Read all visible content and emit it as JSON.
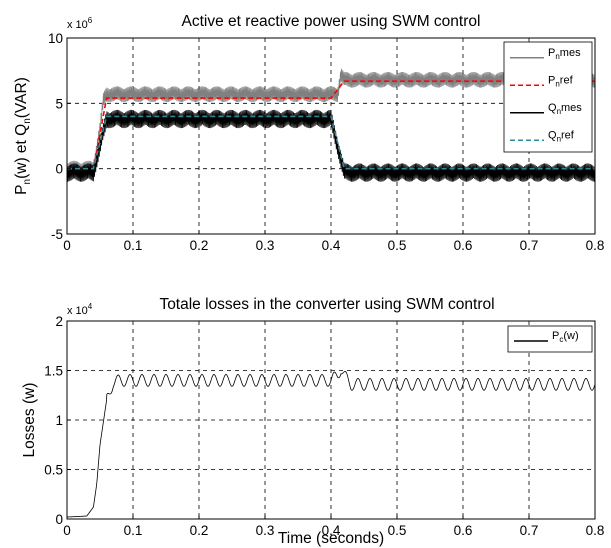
{
  "chart_data": [
    {
      "type": "line",
      "title": "Active et reactive power using SWM control",
      "xlabel": "",
      "ylabel": "P_n(w) et Q_n(VAR)",
      "y_multiplier": "x 10^6",
      "xlim": [
        0,
        0.8
      ],
      "ylim": [
        -5,
        10
      ],
      "xticks": [
        "0",
        "0.1",
        "0.2",
        "0.3",
        "0.4",
        "0.5",
        "0.6",
        "0.7",
        "0.8"
      ],
      "yticks": [
        "-5",
        "0",
        "5",
        "10"
      ],
      "grid": true,
      "legend_position": "top-right",
      "series": [
        {
          "name": "P_n mes",
          "color": "#808080",
          "style": "solid",
          "oscillation": 0.6,
          "x": [
            0,
            0.04,
            0.05,
            0.055,
            0.06,
            0.41,
            0.415,
            0.42,
            0.8
          ],
          "values": [
            0,
            0,
            3.0,
            5.2,
            5.7,
            5.7,
            7.2,
            6.8,
            6.8
          ]
        },
        {
          "name": "P_n ref",
          "color": "#ff0000",
          "style": "dashed",
          "oscillation": 0,
          "x": [
            0,
            0.04,
            0.06,
            0.4,
            0.42,
            0.8
          ],
          "values": [
            0,
            0,
            5.4,
            5.4,
            6.7,
            6.7
          ]
        },
        {
          "name": "Q_n mes",
          "color": "#000000",
          "style": "solid",
          "oscillation": 0.7,
          "x": [
            0,
            0.04,
            0.06,
            0.4,
            0.42,
            0.8
          ],
          "values": [
            -0.3,
            -0.3,
            3.8,
            3.8,
            -0.3,
            -0.3
          ]
        },
        {
          "name": "Q_n ref",
          "color": "#2e8b9a",
          "style": "dashed",
          "oscillation": 0,
          "x": [
            0,
            0.04,
            0.06,
            0.4,
            0.42,
            0.8
          ],
          "values": [
            0,
            0,
            4.0,
            4.0,
            0,
            0
          ]
        }
      ]
    },
    {
      "type": "line",
      "title": "Totale losses in the converter using SWM control",
      "xlabel": "Time (seconds)",
      "ylabel": "Losses (w)",
      "y_multiplier": "x 10^4",
      "xlim": [
        0,
        0.8
      ],
      "ylim": [
        0,
        2
      ],
      "xticks": [
        "0",
        "0.1",
        "0.2",
        "0.3",
        "0.4",
        "0.5",
        "0.6",
        "0.7",
        "0.8"
      ],
      "yticks": [
        "0",
        "0.5",
        "1",
        "1.5",
        "2"
      ],
      "grid": true,
      "legend_position": "top-right",
      "series": [
        {
          "name": "P_c(w)",
          "color": "#000000",
          "style": "solid",
          "oscillation": 0.06,
          "x": [
            0,
            0.03,
            0.04,
            0.045,
            0.05,
            0.06,
            0.07,
            0.08,
            0.4,
            0.41,
            0.415,
            0.42,
            0.43,
            0.8
          ],
          "values": [
            0.02,
            0.03,
            0.12,
            0.35,
            0.75,
            1.2,
            1.38,
            1.4,
            1.4,
            1.45,
            1.52,
            1.45,
            1.36,
            1.36
          ]
        }
      ]
    }
  ]
}
